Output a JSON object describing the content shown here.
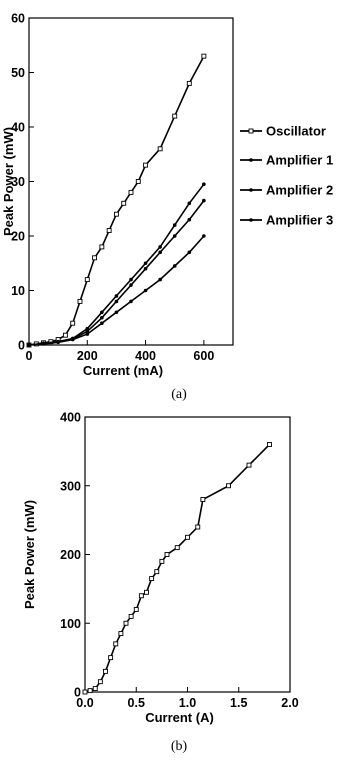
{
  "chart_data": [
    {
      "type": "line",
      "caption": "(a)",
      "xlabel": "Current (mA)",
      "ylabel": "Peak Power (mW)",
      "xlim": [
        0,
        700
      ],
      "ylim": [
        0,
        60
      ],
      "xticks": [
        0,
        200,
        400,
        600
      ],
      "yticks": [
        0,
        10,
        20,
        30,
        40,
        50,
        60
      ],
      "grid": false,
      "legend": "right",
      "series": [
        {
          "name": "Oscillator",
          "marker": "open-square",
          "x": [
            0,
            25,
            50,
            75,
            100,
            125,
            150,
            175,
            200,
            225,
            250,
            275,
            300,
            325,
            350,
            375,
            400,
            450,
            500,
            550,
            600
          ],
          "y": [
            0,
            0.2,
            0.4,
            0.6,
            1.0,
            1.8,
            4,
            8,
            12,
            16,
            18,
            21,
            24,
            26,
            28,
            30,
            33,
            36,
            42,
            48,
            53
          ]
        },
        {
          "name": "Amplifier 1",
          "marker": "dot",
          "x": [
            0,
            50,
            100,
            150,
            200,
            250,
            300,
            350,
            400,
            450,
            500,
            550,
            600
          ],
          "y": [
            0,
            0.3,
            0.6,
            1.2,
            3,
            6,
            9,
            12,
            15,
            18,
            22,
            26,
            29.5
          ]
        },
        {
          "name": "Amplifier 2",
          "marker": "dot",
          "x": [
            0,
            50,
            100,
            150,
            200,
            250,
            300,
            350,
            400,
            450,
            500,
            550,
            600
          ],
          "y": [
            0,
            0.3,
            0.6,
            1.1,
            2.5,
            5,
            8,
            11,
            14,
            17,
            20,
            23,
            26.5
          ]
        },
        {
          "name": "Amplifier 3",
          "marker": "dot",
          "x": [
            0,
            50,
            100,
            150,
            200,
            250,
            300,
            350,
            400,
            450,
            500,
            550,
            600
          ],
          "y": [
            0,
            0.2,
            0.5,
            1.0,
            2,
            4,
            6,
            8,
            10,
            12,
            14.5,
            17,
            20
          ]
        }
      ]
    },
    {
      "type": "line",
      "caption": "(b)",
      "xlabel": "Current (A)",
      "ylabel": "Peak Power (mW)",
      "xlim": [
        0,
        2.0
      ],
      "ylim": [
        0,
        400
      ],
      "xticks": [
        0.0,
        0.5,
        1.0,
        1.5,
        2.0
      ],
      "xtick_labels": [
        "0.0",
        "0.5",
        "1.0",
        "1.5",
        "2.0"
      ],
      "yticks": [
        0,
        100,
        200,
        300,
        400
      ],
      "grid": false,
      "series": [
        {
          "marker": "open-square",
          "x": [
            0.0,
            0.05,
            0.1,
            0.15,
            0.2,
            0.25,
            0.3,
            0.35,
            0.4,
            0.45,
            0.5,
            0.55,
            0.6,
            0.65,
            0.7,
            0.75,
            0.8,
            0.9,
            1.0,
            1.1,
            1.15,
            1.4,
            1.6,
            1.8
          ],
          "y": [
            0,
            2,
            5,
            15,
            30,
            50,
            70,
            85,
            100,
            110,
            120,
            140,
            145,
            165,
            175,
            190,
            200,
            210,
            225,
            240,
            280,
            300,
            330,
            360
          ]
        }
      ]
    }
  ]
}
